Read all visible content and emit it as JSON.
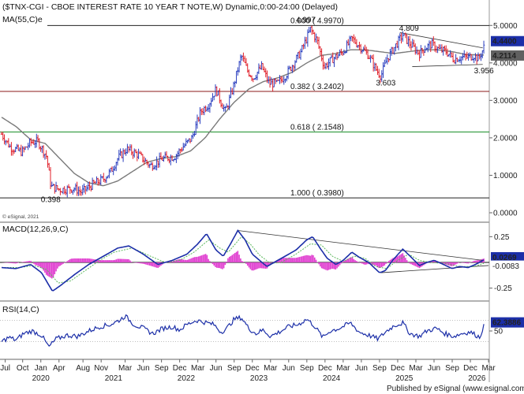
{
  "chart_data": {
    "type": "line",
    "title": "($TNX-CGI - CBOE INTEREST RATE 10 YEAR T NOTE,W) Dynamic,0:00-24:00 (Delayed)",
    "watermark": "© eSignal, 2021",
    "footer": "Published by eSignal (www.esignal.com)",
    "colors": {
      "up": "#2b3fbf",
      "down": "#e0202a",
      "ma": "#7a7a7a",
      "fib382": "#8b1a1a",
      "fib618": "#1a8f2a",
      "macd": "#1c2fa8",
      "signal": "#5ab85a",
      "hist": "#e040d0",
      "rsi": "#1c2fa8",
      "marker": "#1c2fa8",
      "marker_gray": "#606060"
    },
    "x_axis": {
      "months": [
        "Jul",
        "Oct",
        "Jan",
        "Apr",
        "Aug",
        "Nov",
        "Mar",
        "Jun",
        "Sep",
        "Dec",
        "Mar",
        "Jun",
        "Sep",
        "Dec",
        "Mar",
        "Jun",
        "Sep",
        "Dec",
        "Mar",
        "Jun",
        "Sep",
        "Dec",
        "Mar",
        "Jun",
        "Sep",
        "Dec",
        "Mar"
      ],
      "years": [
        "2020",
        "2021",
        "2022",
        "2023",
        "2024",
        "2025",
        "2026"
      ]
    },
    "price_panel": {
      "ma_label": "MA(55,C)e",
      "ylim": [
        0,
        5.3
      ],
      "y_ticks": [
        "5.0000",
        "4.0000",
        "3.0000",
        "2.0000",
        "1.0000",
        "0.0000"
      ],
      "levels": [
        {
          "value": 4.997,
          "label": "0.000 ( 4.9970)"
        },
        {
          "value": 3.2402,
          "label": "0.382 ( 3.2402)"
        },
        {
          "value": 2.1548,
          "label": "0.618 ( 2.1548)"
        },
        {
          "value": 0.398,
          "label": "1.000 ( 0.3980)"
        }
      ],
      "annotations": [
        "0.398",
        "4.997",
        "4.809",
        "3.603",
        "3.956"
      ],
      "last_price": "4.4400",
      "ma_value": "4.2114",
      "close_anchors": [
        [
          2019.5,
          2.1
        ],
        [
          2019.62,
          1.75
        ],
        [
          2019.78,
          1.62
        ],
        [
          2019.9,
          1.88
        ],
        [
          2020.0,
          1.9
        ],
        [
          2020.12,
          1.5
        ],
        [
          2020.18,
          0.7
        ],
        [
          2020.3,
          0.62
        ],
        [
          2020.5,
          0.65
        ],
        [
          2020.6,
          0.55
        ],
        [
          2020.75,
          0.75
        ],
        [
          2020.9,
          0.9
        ],
        [
          2021.0,
          1.1
        ],
        [
          2021.1,
          1.45
        ],
        [
          2021.22,
          1.7
        ],
        [
          2021.38,
          1.55
        ],
        [
          2021.55,
          1.25
        ],
        [
          2021.72,
          1.45
        ],
        [
          2021.88,
          1.5
        ],
        [
          2022.0,
          1.77
        ],
        [
          2022.12,
          2.0
        ],
        [
          2022.24,
          2.7
        ],
        [
          2022.35,
          2.9
        ],
        [
          2022.45,
          3.3
        ],
        [
          2022.52,
          2.95
        ],
        [
          2022.58,
          2.7
        ],
        [
          2022.68,
          3.3
        ],
        [
          2022.8,
          4.2
        ],
        [
          2022.88,
          3.8
        ],
        [
          2022.96,
          3.6
        ],
        [
          2023.08,
          3.9
        ],
        [
          2023.18,
          3.45
        ],
        [
          2023.3,
          3.45
        ],
        [
          2023.42,
          3.7
        ],
        [
          2023.52,
          4.0
        ],
        [
          2023.62,
          4.3
        ],
        [
          2023.75,
          4.9
        ],
        [
          2023.84,
          4.6
        ],
        [
          2023.94,
          3.9
        ],
        [
          2024.05,
          4.1
        ],
        [
          2024.2,
          4.3
        ],
        [
          2024.32,
          4.65
        ],
        [
          2024.45,
          4.4
        ],
        [
          2024.55,
          4.2
        ],
        [
          2024.66,
          3.8
        ],
        [
          2024.72,
          3.65
        ],
        [
          2024.8,
          4.1
        ],
        [
          2024.9,
          4.4
        ],
        [
          2025.02,
          4.75
        ],
        [
          2025.12,
          4.5
        ],
        [
          2025.25,
          4.25
        ],
        [
          2025.32,
          4.4
        ],
        [
          2025.42,
          4.5
        ],
        [
          2025.52,
          4.35
        ],
        [
          2025.62,
          4.3
        ],
        [
          2025.72,
          4.1
        ],
        [
          2025.82,
          4.15
        ],
        [
          2025.92,
          4.15
        ],
        [
          2026.0,
          4.2
        ],
        [
          2026.06,
          4.1
        ],
        [
          2026.11,
          4.3
        ],
        [
          2026.14,
          4.44
        ]
      ],
      "ma_anchors": [
        [
          2019.5,
          2.55
        ],
        [
          2019.7,
          2.3
        ],
        [
          2019.9,
          1.95
        ],
        [
          2020.1,
          1.85
        ],
        [
          2020.3,
          1.45
        ],
        [
          2020.5,
          1.05
        ],
        [
          2020.7,
          0.8
        ],
        [
          2020.9,
          0.72
        ],
        [
          2021.1,
          0.85
        ],
        [
          2021.3,
          1.1
        ],
        [
          2021.5,
          1.35
        ],
        [
          2021.7,
          1.45
        ],
        [
          2021.9,
          1.5
        ],
        [
          2022.1,
          1.65
        ],
        [
          2022.3,
          2.0
        ],
        [
          2022.5,
          2.5
        ],
        [
          2022.7,
          2.95
        ],
        [
          2022.9,
          3.3
        ],
        [
          2023.1,
          3.5
        ],
        [
          2023.3,
          3.6
        ],
        [
          2023.5,
          3.75
        ],
        [
          2023.7,
          4.0
        ],
        [
          2023.9,
          4.2
        ],
        [
          2024.1,
          4.25
        ],
        [
          2024.3,
          4.35
        ],
        [
          2024.5,
          4.35
        ],
        [
          2024.7,
          4.3
        ],
        [
          2024.9,
          4.25
        ],
        [
          2025.1,
          4.3
        ],
        [
          2025.3,
          4.35
        ],
        [
          2025.5,
          4.35
        ],
        [
          2025.7,
          4.3
        ],
        [
          2025.9,
          4.22
        ],
        [
          2026.14,
          4.21
        ]
      ]
    },
    "macd_panel": {
      "label": "MACD(12,26,9,C)",
      "ylim": [
        -0.36,
        0.36
      ],
      "y_ticks": [
        "0.25",
        "-0.25"
      ],
      "value": "0.0269",
      "signal_value": "-0.0083",
      "macd_anchors": [
        [
          2019.5,
          -0.05
        ],
        [
          2019.7,
          -0.06
        ],
        [
          2019.9,
          -0.02
        ],
        [
          2020.05,
          -0.1
        ],
        [
          2020.2,
          -0.28
        ],
        [
          2020.32,
          -0.22
        ],
        [
          2020.5,
          -0.12
        ],
        [
          2020.7,
          -0.02
        ],
        [
          2020.9,
          0.06
        ],
        [
          2021.1,
          0.14
        ],
        [
          2021.25,
          0.16
        ],
        [
          2021.45,
          0.08
        ],
        [
          2021.65,
          -0.02
        ],
        [
          2021.85,
          0.02
        ],
        [
          2022.05,
          0.08
        ],
        [
          2022.2,
          0.18
        ],
        [
          2022.32,
          0.28
        ],
        [
          2022.45,
          0.12
        ],
        [
          2022.55,
          0.06
        ],
        [
          2022.65,
          0.18
        ],
        [
          2022.75,
          0.31
        ],
        [
          2022.85,
          0.22
        ],
        [
          2022.95,
          0.08
        ],
        [
          2023.05,
          0.02
        ],
        [
          2023.15,
          -0.04
        ],
        [
          2023.25,
          0.0
        ],
        [
          2023.4,
          0.06
        ],
        [
          2023.55,
          0.12
        ],
        [
          2023.7,
          0.22
        ],
        [
          2023.78,
          0.25
        ],
        [
          2023.88,
          0.14
        ],
        [
          2023.98,
          0.04
        ],
        [
          2024.1,
          -0.02
        ],
        [
          2024.2,
          0.02
        ],
        [
          2024.32,
          0.1
        ],
        [
          2024.42,
          0.05
        ],
        [
          2024.55,
          0.0
        ],
        [
          2024.7,
          -0.1
        ],
        [
          2024.78,
          -0.08
        ],
        [
          2024.88,
          0.02
        ],
        [
          2025.02,
          0.13
        ],
        [
          2025.15,
          0.04
        ],
        [
          2025.25,
          -0.03
        ],
        [
          2025.35,
          0.0
        ],
        [
          2025.45,
          0.02
        ],
        [
          2025.55,
          -0.01
        ],
        [
          2025.7,
          -0.06
        ],
        [
          2025.8,
          -0.04
        ],
        [
          2025.92,
          -0.05
        ],
        [
          2026.02,
          -0.02
        ],
        [
          2026.1,
          0.01
        ],
        [
          2026.14,
          0.027
        ]
      ],
      "signal_anchors": [
        [
          2019.5,
          -0.05
        ],
        [
          2019.75,
          -0.05
        ],
        [
          2019.95,
          -0.03
        ],
        [
          2020.12,
          -0.07
        ],
        [
          2020.28,
          -0.2
        ],
        [
          2020.45,
          -0.18
        ],
        [
          2020.65,
          -0.08
        ],
        [
          2020.85,
          0.02
        ],
        [
          2021.05,
          0.1
        ],
        [
          2021.3,
          0.14
        ],
        [
          2021.55,
          0.06
        ],
        [
          2021.75,
          0.0
        ],
        [
          2021.95,
          0.02
        ],
        [
          2022.15,
          0.1
        ],
        [
          2022.35,
          0.22
        ],
        [
          2022.5,
          0.14
        ],
        [
          2022.62,
          0.1
        ],
        [
          2022.8,
          0.25
        ],
        [
          2022.92,
          0.18
        ],
        [
          2023.05,
          0.07
        ],
        [
          2023.2,
          -0.01
        ],
        [
          2023.35,
          0.0
        ],
        [
          2023.55,
          0.08
        ],
        [
          2023.75,
          0.18
        ],
        [
          2023.9,
          0.17
        ],
        [
          2024.05,
          0.06
        ],
        [
          2024.2,
          0.01
        ],
        [
          2024.35,
          0.06
        ],
        [
          2024.5,
          0.04
        ],
        [
          2024.65,
          -0.04
        ],
        [
          2024.8,
          -0.06
        ],
        [
          2024.95,
          0.02
        ],
        [
          2025.1,
          0.08
        ],
        [
          2025.25,
          0.02
        ],
        [
          2025.4,
          0.0
        ],
        [
          2025.6,
          -0.01
        ],
        [
          2025.8,
          -0.04
        ],
        [
          2026.0,
          -0.04
        ],
        [
          2026.14,
          -0.008
        ]
      ]
    },
    "rsi_panel": {
      "label": "RSI(14,C)",
      "ylim": [
        0,
        100
      ],
      "y_ticks": [
        "50"
      ],
      "levels": [
        70,
        30
      ],
      "value": "62.3886",
      "rsi_anchors": [
        [
          2019.5,
          30
        ],
        [
          2019.6,
          38
        ],
        [
          2019.7,
          33
        ],
        [
          2019.8,
          45
        ],
        [
          2019.92,
          50
        ],
        [
          2020.05,
          42
        ],
        [
          2020.15,
          20
        ],
        [
          2020.25,
          35
        ],
        [
          2020.4,
          42
        ],
        [
          2020.55,
          40
        ],
        [
          2020.7,
          50
        ],
        [
          2020.85,
          58
        ],
        [
          2021.0,
          62
        ],
        [
          2021.12,
          70
        ],
        [
          2021.2,
          78
        ],
        [
          2021.32,
          62
        ],
        [
          2021.45,
          55
        ],
        [
          2021.58,
          45
        ],
        [
          2021.72,
          55
        ],
        [
          2021.85,
          58
        ],
        [
          2021.95,
          52
        ],
        [
          2022.05,
          62
        ],
        [
          2022.18,
          70
        ],
        [
          2022.3,
          66
        ],
        [
          2022.42,
          62
        ],
        [
          2022.52,
          48
        ],
        [
          2022.6,
          55
        ],
        [
          2022.7,
          72
        ],
        [
          2022.8,
          75
        ],
        [
          2022.9,
          55
        ],
        [
          2023.0,
          45
        ],
        [
          2023.1,
          52
        ],
        [
          2023.2,
          40
        ],
        [
          2023.32,
          48
        ],
        [
          2023.45,
          58
        ],
        [
          2023.58,
          62
        ],
        [
          2023.7,
          72
        ],
        [
          2023.8,
          60
        ],
        [
          2023.92,
          38
        ],
        [
          2024.02,
          50
        ],
        [
          2024.15,
          55
        ],
        [
          2024.3,
          65
        ],
        [
          2024.42,
          48
        ],
        [
          2024.55,
          42
        ],
        [
          2024.68,
          35
        ],
        [
          2024.78,
          48
        ],
        [
          2024.9,
          60
        ],
        [
          2025.02,
          65
        ],
        [
          2025.12,
          45
        ],
        [
          2025.25,
          40
        ],
        [
          2025.35,
          50
        ],
        [
          2025.48,
          55
        ],
        [
          2025.6,
          45
        ],
        [
          2025.72,
          40
        ],
        [
          2025.85,
          46
        ],
        [
          2025.95,
          48
        ],
        [
          2026.03,
          42
        ],
        [
          2026.08,
          38
        ],
        [
          2026.12,
          55
        ],
        [
          2026.14,
          62.4
        ]
      ]
    },
    "trendlines": {
      "price": [
        {
          "from": [
            2024.98,
            4.81
          ],
          "to": [
            2026.12,
            4.4
          ],
          "color": "#333333"
        },
        {
          "from": [
            2025.15,
            3.9
          ],
          "to": [
            2026.12,
            3.96
          ],
          "color": "#333333"
        }
      ],
      "macd": [
        {
          "from": [
            2022.75,
            0.31
          ],
          "to": [
            2026.12,
            0.02
          ],
          "color": "#333333"
        },
        {
          "from": [
            2024.72,
            -0.1
          ],
          "to": [
            2026.2,
            -0.03
          ],
          "color": "#333333"
        }
      ]
    }
  }
}
